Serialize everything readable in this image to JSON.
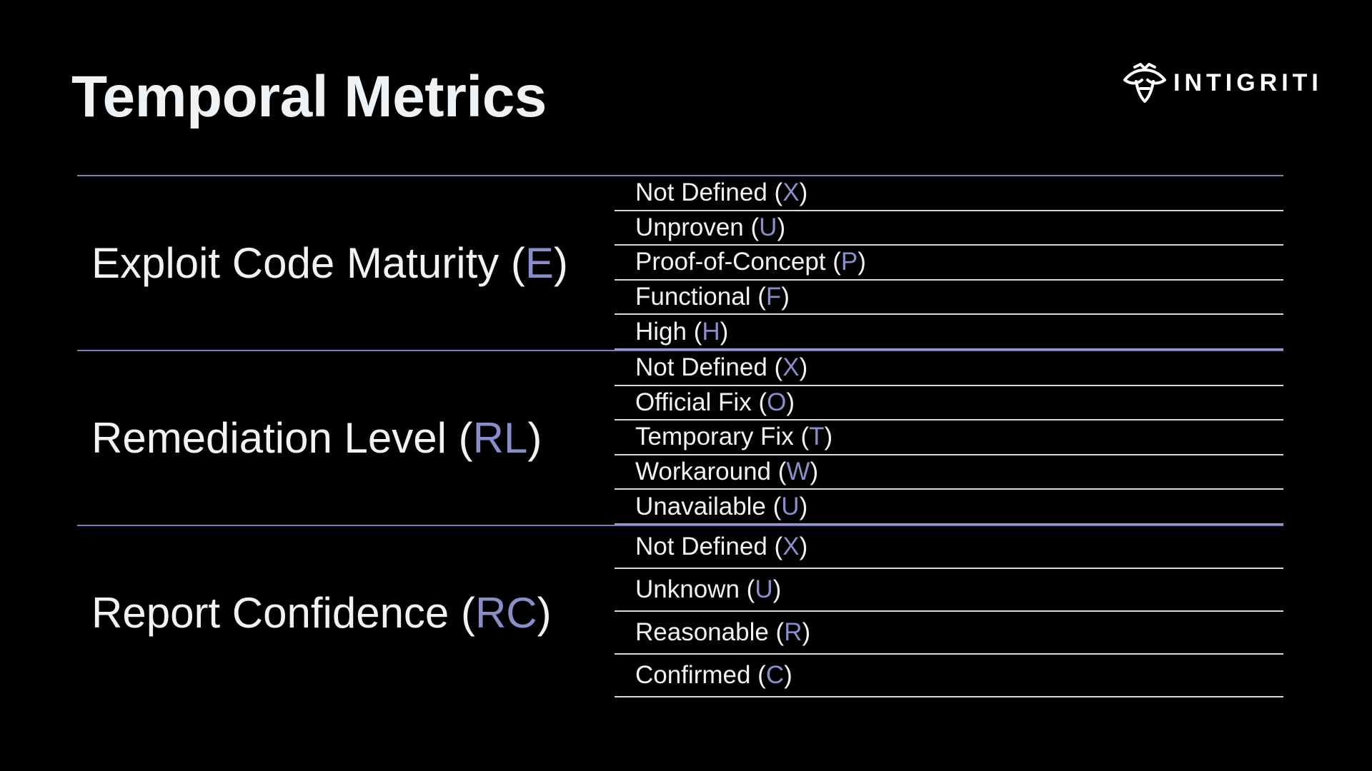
{
  "title": "Temporal Metrics",
  "logo": {
    "text": "INTIGRITI",
    "icon": "bee-icon"
  },
  "colors": {
    "background": "#000000",
    "accent": "#8a8ec8",
    "text": "#f2f2f2",
    "divider": "#7b7fbf"
  },
  "groups": [
    {
      "name": "Exploit Code Maturity",
      "code": "E",
      "options": [
        {
          "label": "Not Defined",
          "code": "X"
        },
        {
          "label": "Unproven",
          "code": "U"
        },
        {
          "label": "Proof-of-Concept",
          "code": "P"
        },
        {
          "label": "Functional",
          "code": "F"
        },
        {
          "label": "High",
          "code": "H"
        }
      ]
    },
    {
      "name": "Remediation Level",
      "code": "RL",
      "options": [
        {
          "label": "Not Defined",
          "code": "X"
        },
        {
          "label": "Official Fix",
          "code": "O"
        },
        {
          "label": "Temporary Fix",
          "code": "T"
        },
        {
          "label": "Workaround",
          "code": "W"
        },
        {
          "label": "Unavailable",
          "code": "U"
        }
      ]
    },
    {
      "name": "Report Confidence",
      "code": "RC",
      "options": [
        {
          "label": "Not Defined",
          "code": "X"
        },
        {
          "label": "Unknown",
          "code": "U"
        },
        {
          "label": "Reasonable",
          "code": "R"
        },
        {
          "label": "Confirmed",
          "code": "C"
        }
      ]
    }
  ]
}
